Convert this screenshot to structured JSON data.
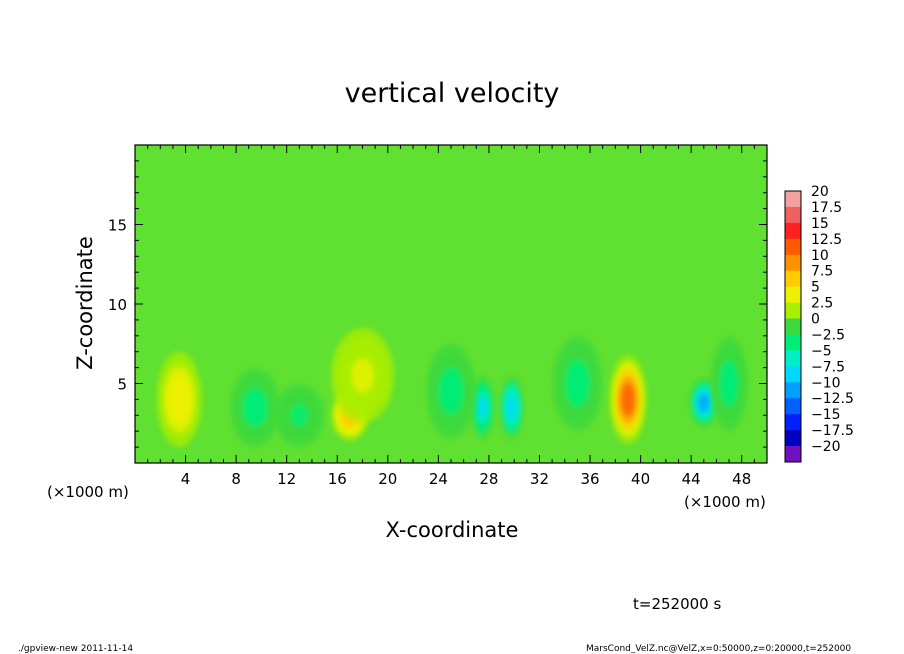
{
  "chart_data": {
    "type": "heatmap",
    "title": "vertical velocity",
    "xlabel": "X-coordinate",
    "ylabel": "Z-coordinate",
    "x_unit_left": "(×1000 m)",
    "x_unit_right": "(×1000 m)",
    "xlim": [
      0,
      50
    ],
    "ylim": [
      0,
      20
    ],
    "x_ticks": [
      4,
      8,
      12,
      16,
      20,
      24,
      28,
      32,
      36,
      40,
      44,
      48
    ],
    "y_ticks": [
      5,
      10,
      15
    ],
    "colorbar": {
      "levels": [
        20,
        17.5,
        15,
        12.5,
        10,
        7.5,
        5,
        2.5,
        0,
        -2.5,
        -5,
        -7.5,
        -10,
        -12.5,
        -15,
        -17.5,
        -20
      ],
      "level_labels": [
        "20",
        "17.5",
        "15",
        "12.5",
        "10",
        "7.5",
        "5",
        "2.5",
        "0",
        "−2.5",
        "−5",
        "−7.5",
        "−10",
        "−12.5",
        "−15",
        "−17.5",
        "−20"
      ],
      "colors": [
        "#f5a0a0",
        "#f06060",
        "#ff2020",
        "#ff5a00",
        "#ff9000",
        "#ffcc00",
        "#eef000",
        "#aaee00",
        "#3cd83c",
        "#00ee78",
        "#00eec8",
        "#00d8ff",
        "#00a0ff",
        "#0060ff",
        "#0020ff",
        "#0000c0",
        "#7010c0"
      ]
    },
    "background_value": 1.5,
    "features": [
      {
        "x": 3.5,
        "z": 4.0,
        "value": 6.0,
        "rx": 1.8,
        "rz": 3.0
      },
      {
        "x": 17.0,
        "z": 3.0,
        "value": 8.0,
        "rx": 1.5,
        "rz": 1.6
      },
      {
        "x": 18.0,
        "z": 5.5,
        "value": 4.0,
        "rx": 2.5,
        "rz": 3.0
      },
      {
        "x": 9.5,
        "z": 3.5,
        "value": -3.0,
        "rx": 2.0,
        "rz": 2.5
      },
      {
        "x": 13.0,
        "z": 3.0,
        "value": -1.5,
        "rx": 2.0,
        "rz": 2.0
      },
      {
        "x": 27.5,
        "z": 3.5,
        "value": -7.0,
        "rx": 1.0,
        "rz": 2.0
      },
      {
        "x": 29.8,
        "z": 3.5,
        "value": -7.5,
        "rx": 1.0,
        "rz": 2.0
      },
      {
        "x": 25.0,
        "z": 4.5,
        "value": -3.0,
        "rx": 2.0,
        "rz": 3.0
      },
      {
        "x": 39.0,
        "z": 4.0,
        "value": 12.5,
        "rx": 1.5,
        "rz": 2.8
      },
      {
        "x": 45.0,
        "z": 3.8,
        "value": -10.0,
        "rx": 1.2,
        "rz": 1.6
      },
      {
        "x": 47.0,
        "z": 5.0,
        "value": -3.0,
        "rx": 1.5,
        "rz": 3.0
      },
      {
        "x": 35.0,
        "z": 5.0,
        "value": -2.0,
        "rx": 2.0,
        "rz": 3.0
      }
    ],
    "time_label": "t=252000 s"
  },
  "footer": {
    "left": "./gpview-new  2011-11-14",
    "right": "MarsCond_VelZ.nc@VelZ,x=0:50000,z=0:20000,t=252000"
  }
}
